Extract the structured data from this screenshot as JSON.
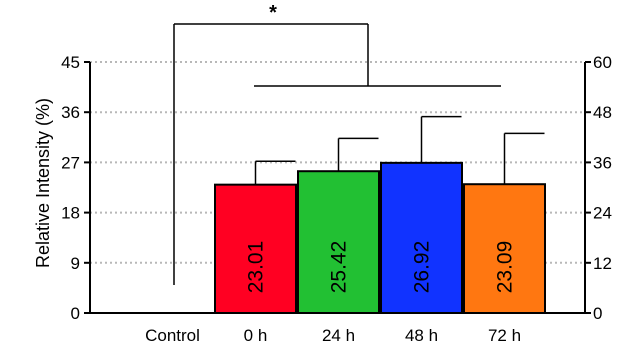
{
  "chart_data": {
    "type": "bar",
    "categories": [
      "Control",
      "0 h",
      "24 h",
      "48 h",
      "72 h"
    ],
    "values": [
      0,
      23.01,
      25.42,
      26.92,
      23.09
    ],
    "error_upper": [
      0,
      27.2,
      31.3,
      35.2,
      32.2
    ],
    "value_labels": [
      "",
      "23.01",
      "25.42",
      "26.92",
      "23.09"
    ],
    "colors": [
      "#ffffff",
      "#ff0022",
      "#22c033",
      "#1133ff",
      "#ff7711"
    ],
    "ylabel": "Relative Intensity (%)",
    "ylim": [
      0,
      45
    ],
    "yticks": [
      "0",
      "9",
      "18",
      "27",
      "36",
      "45"
    ],
    "y2lim": [
      0,
      60
    ],
    "y2ticks": [
      "0",
      "12",
      "24",
      "36",
      "48",
      "60"
    ],
    "grid": "horizontal dotted",
    "significance": {
      "label": "*",
      "description": "Control vs 0 h–72 h"
    }
  }
}
